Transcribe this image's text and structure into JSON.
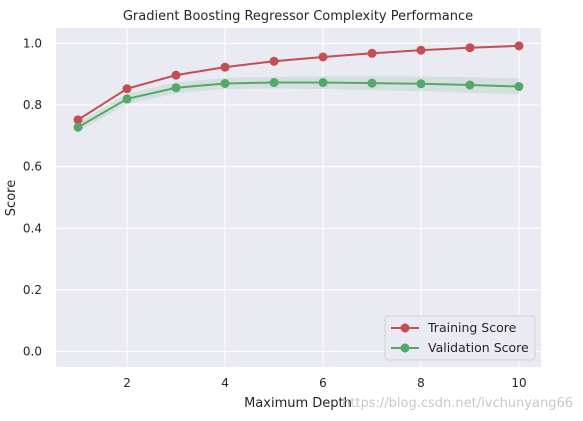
{
  "chart_data": {
    "type": "line",
    "title": "Gradient Boosting Regressor Complexity Performance",
    "xlabel": "Maximum Depth",
    "ylabel": "Score",
    "x": [
      1,
      2,
      3,
      4,
      5,
      6,
      7,
      8,
      9,
      10
    ],
    "xlim": [
      0.55,
      10.45
    ],
    "ylim": [
      -0.05,
      1.05
    ],
    "xticks": [
      2,
      4,
      6,
      8,
      10
    ],
    "yticks": [
      0.0,
      0.2,
      0.4,
      0.6,
      0.8,
      1.0
    ],
    "xtick_labels": [
      "2",
      "4",
      "6",
      "8",
      "10"
    ],
    "ytick_labels": [
      "0.0",
      "0.2",
      "0.4",
      "0.6",
      "0.8",
      "1.0"
    ],
    "grid": true,
    "legend_position": "lower-right",
    "series": [
      {
        "name": "Training Score",
        "color": "#c44e52",
        "values": [
          0.752,
          0.853,
          0.897,
          0.923,
          0.942,
          0.956,
          0.968,
          0.978,
          0.986,
          0.992
        ],
        "band_lower": [
          0.748,
          0.85,
          0.894,
          0.92,
          0.939,
          0.953,
          0.965,
          0.975,
          0.983,
          0.989
        ],
        "band_upper": [
          0.756,
          0.856,
          0.9,
          0.926,
          0.945,
          0.959,
          0.971,
          0.981,
          0.989,
          0.995
        ]
      },
      {
        "name": "Validation Score",
        "color": "#55a868",
        "values": [
          0.728,
          0.82,
          0.856,
          0.87,
          0.873,
          0.873,
          0.871,
          0.869,
          0.865,
          0.86
        ],
        "band_lower": [
          0.713,
          0.803,
          0.838,
          0.852,
          0.854,
          0.852,
          0.848,
          0.845,
          0.84,
          0.834
        ],
        "band_upper": [
          0.743,
          0.837,
          0.874,
          0.888,
          0.892,
          0.894,
          0.894,
          0.893,
          0.89,
          0.886
        ]
      }
    ]
  },
  "watermark": "https://blog.csdn.net/lvchunyang66"
}
